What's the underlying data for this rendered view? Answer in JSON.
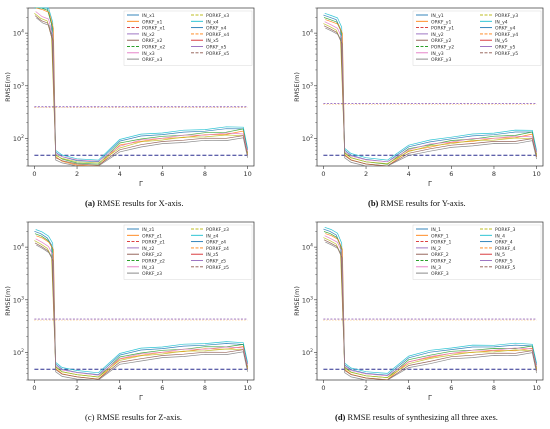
{
  "figure": {
    "captions": [
      {
        "tag": "(a)",
        "text": " RMSE results for X-axis."
      },
      {
        "tag": "(b)",
        "text": " RMSE results for Y-axis."
      },
      {
        "tag": "(c)",
        "text": " RMSE results for Z-axis."
      },
      {
        "tag": "(d)",
        "text": " RMSE results of synthesizing all three axes."
      }
    ]
  },
  "chart_data": [
    {
      "type": "line",
      "title": "",
      "xlabel": "Γ",
      "ylabel": "RMSE(m)",
      "yscale": "log",
      "xlim": [
        -0.3,
        10.3
      ],
      "ylim": [
        30,
        30000
      ],
      "x_ticks": [
        "0",
        "2",
        "4",
        "6",
        "8",
        "10"
      ],
      "y_ticks": [
        "10^2",
        "10^3",
        "10^4"
      ],
      "legend_placement": "top-right",
      "legend": [
        "IN_x1",
        "ORKF_x1",
        "PORKF_x1",
        "IN_x2",
        "ORKF_x2",
        "PORKF_x2",
        "IN_x3",
        "ORKF_x3",
        "PORKF_x3",
        "IN_x4",
        "ORKF_x4",
        "PORKF_x4",
        "IN_x5",
        "ORKF_x5",
        "PORKF_x5"
      ],
      "series": [
        {
          "group": "IN",
          "x": [
            0,
            0.3,
            0.6,
            0.8,
            1.0,
            1.3,
            2,
            3,
            4,
            5,
            6,
            7,
            8,
            9,
            9.8,
            10
          ],
          "y": [
            38000,
            34000,
            30000,
            15000,
            55,
            45,
            38,
            36,
            90,
            110,
            120,
            130,
            140,
            150,
            160,
            60
          ]
        },
        {
          "group": "ORKF",
          "x": [
            0,
            0.3,
            0.6,
            0.8,
            1.0,
            1.3,
            2,
            3,
            4,
            5,
            6,
            7,
            8,
            9,
            9.8,
            10
          ],
          "y": [
            25000,
            20000,
            18000,
            9000,
            50,
            44,
            38,
            36,
            70,
            90,
            100,
            110,
            115,
            120,
            125,
            55
          ]
        },
        {
          "group": "PORKF_ref",
          "x": [
            0,
            10
          ],
          "y": [
            400,
            400
          ]
        },
        {
          "group": "PORKF",
          "x": [
            0,
            10
          ],
          "y": [
            48,
            48
          ]
        }
      ]
    },
    {
      "type": "line",
      "title": "",
      "xlabel": "Γ",
      "ylabel": "RMSE(m)",
      "yscale": "log",
      "xlim": [
        -0.3,
        10.3
      ],
      "ylim": [
        30,
        30000
      ],
      "x_ticks": [
        "0",
        "2",
        "4",
        "6",
        "8",
        "10"
      ],
      "y_ticks": [
        "10^2",
        "10^3",
        "10^4"
      ],
      "legend_placement": "top-right",
      "legend": [
        "IN_y1",
        "ORKF_y1",
        "PORKF_y1",
        "IN_y2",
        "ORKF_y2",
        "PORKF_y2",
        "IN_y3",
        "ORKF_y3",
        "PORKF_y3",
        "IN_y4",
        "ORKF_y4",
        "PORKF_y4",
        "IN_y5",
        "ORKF_y5",
        "PORKF_y5"
      ],
      "series": [
        {
          "group": "IN",
          "x": [
            0,
            0.3,
            0.6,
            0.8,
            1.0,
            1.3,
            2,
            3,
            4,
            5,
            6,
            7,
            8,
            9,
            9.8,
            10
          ],
          "y": [
            22000,
            20000,
            18000,
            12000,
            60,
            48,
            40,
            36,
            70,
            85,
            100,
            110,
            120,
            130,
            140,
            55
          ]
        },
        {
          "group": "ORKF",
          "x": [
            0,
            0.3,
            0.6,
            0.8,
            1.0,
            1.3,
            2,
            3,
            4,
            5,
            6,
            7,
            8,
            9,
            9.8,
            10
          ],
          "y": [
            16000,
            14000,
            12000,
            8000,
            55,
            45,
            38,
            35,
            60,
            75,
            85,
            95,
            100,
            105,
            110,
            52
          ]
        },
        {
          "group": "PORKF_ref",
          "x": [
            0,
            10
          ],
          "y": [
            460,
            460
          ]
        },
        {
          "group": "PORKF",
          "x": [
            0,
            10
          ],
          "y": [
            48,
            48
          ]
        }
      ]
    },
    {
      "type": "line",
      "title": "",
      "xlabel": "Γ",
      "ylabel": "RMSE(m)",
      "yscale": "log",
      "xlim": [
        -0.3,
        10.3
      ],
      "ylim": [
        30,
        30000
      ],
      "x_ticks": [
        "0",
        "2",
        "4",
        "6",
        "8",
        "10"
      ],
      "y_ticks": [
        "10^2",
        "10^3",
        "10^4"
      ],
      "legend_placement": "top-right",
      "legend": [
        "IN_z1",
        "ORKF_z1",
        "PORKF_z1",
        "IN_z2",
        "ORKF_z2",
        "PORKF_z2",
        "IN_z3",
        "ORKF_z3",
        "PORKF_z3",
        "IN_z4",
        "ORKF_z4",
        "PORKF_z4",
        "IN_z5",
        "ORKF_z5",
        "PORKF_z5"
      ],
      "series": [
        {
          "group": "IN",
          "x": [
            0,
            0.3,
            0.6,
            0.8,
            1.0,
            1.3,
            2,
            3,
            4,
            5,
            6,
            7,
            8,
            9,
            9.8,
            10
          ],
          "y": [
            20000,
            18000,
            15000,
            11000,
            60,
            48,
            42,
            38,
            90,
            110,
            120,
            130,
            140,
            145,
            150,
            60
          ]
        },
        {
          "group": "ORKF",
          "x": [
            0,
            0.3,
            0.6,
            0.8,
            1.0,
            1.3,
            2,
            3,
            4,
            5,
            6,
            7,
            8,
            9,
            9.8,
            10
          ],
          "y": [
            14000,
            12000,
            10000,
            7000,
            55,
            45,
            40,
            36,
            75,
            90,
            100,
            110,
            115,
            120,
            125,
            55
          ]
        },
        {
          "group": "PORKF_ref",
          "x": [
            0,
            10
          ],
          "y": [
            430,
            430
          ]
        },
        {
          "group": "PORKF",
          "x": [
            0,
            10
          ],
          "y": [
            48,
            48
          ]
        }
      ]
    },
    {
      "type": "line",
      "title": "",
      "xlabel": "Γ",
      "ylabel": "RMSE(m)",
      "yscale": "log",
      "xlim": [
        -0.3,
        10.3
      ],
      "ylim": [
        30,
        30000
      ],
      "x_ticks": [
        "0",
        "2",
        "4",
        "6",
        "8",
        "10"
      ],
      "y_ticks": [
        "10^2",
        "10^3",
        "10^4"
      ],
      "legend_placement": "top-right",
      "legend": [
        "IN_1",
        "ORKF_1",
        "PORKF_1",
        "IN_2",
        "ORKF_2",
        "PORKF_2",
        "IN_3",
        "ORKF_3",
        "PORKF_3",
        "IN_4",
        "ORKF_4",
        "PORKF_4",
        "IN_5",
        "ORKF_5",
        "PORKF_5"
      ],
      "series": [
        {
          "group": "IN",
          "x": [
            0,
            0.3,
            0.6,
            0.8,
            1.0,
            1.3,
            2,
            3,
            4,
            5,
            6,
            7,
            8,
            9,
            9.8,
            10
          ],
          "y": [
            22000,
            20000,
            17000,
            11000,
            58,
            47,
            40,
            37,
            80,
            100,
            115,
            125,
            130,
            135,
            140,
            58
          ]
        },
        {
          "group": "ORKF",
          "x": [
            0,
            0.3,
            0.6,
            0.8,
            1.0,
            1.3,
            2,
            3,
            4,
            5,
            6,
            7,
            8,
            9,
            9.8,
            10
          ],
          "y": [
            16000,
            14000,
            12000,
            8000,
            53,
            44,
            38,
            35,
            65,
            80,
            95,
            105,
            110,
            115,
            120,
            52
          ]
        },
        {
          "group": "PORKF_ref",
          "x": [
            0,
            10
          ],
          "y": [
            430,
            430
          ]
        },
        {
          "group": "PORKF",
          "x": [
            0,
            10
          ],
          "y": [
            48,
            48
          ]
        }
      ]
    }
  ],
  "colors": [
    "#1f77b4",
    "#ff7f0e",
    "#d62728",
    "#9467bd",
    "#8c564b",
    "#2ca02c",
    "#e377c2",
    "#7f7f7f",
    "#bcbd22",
    "#17becf"
  ]
}
